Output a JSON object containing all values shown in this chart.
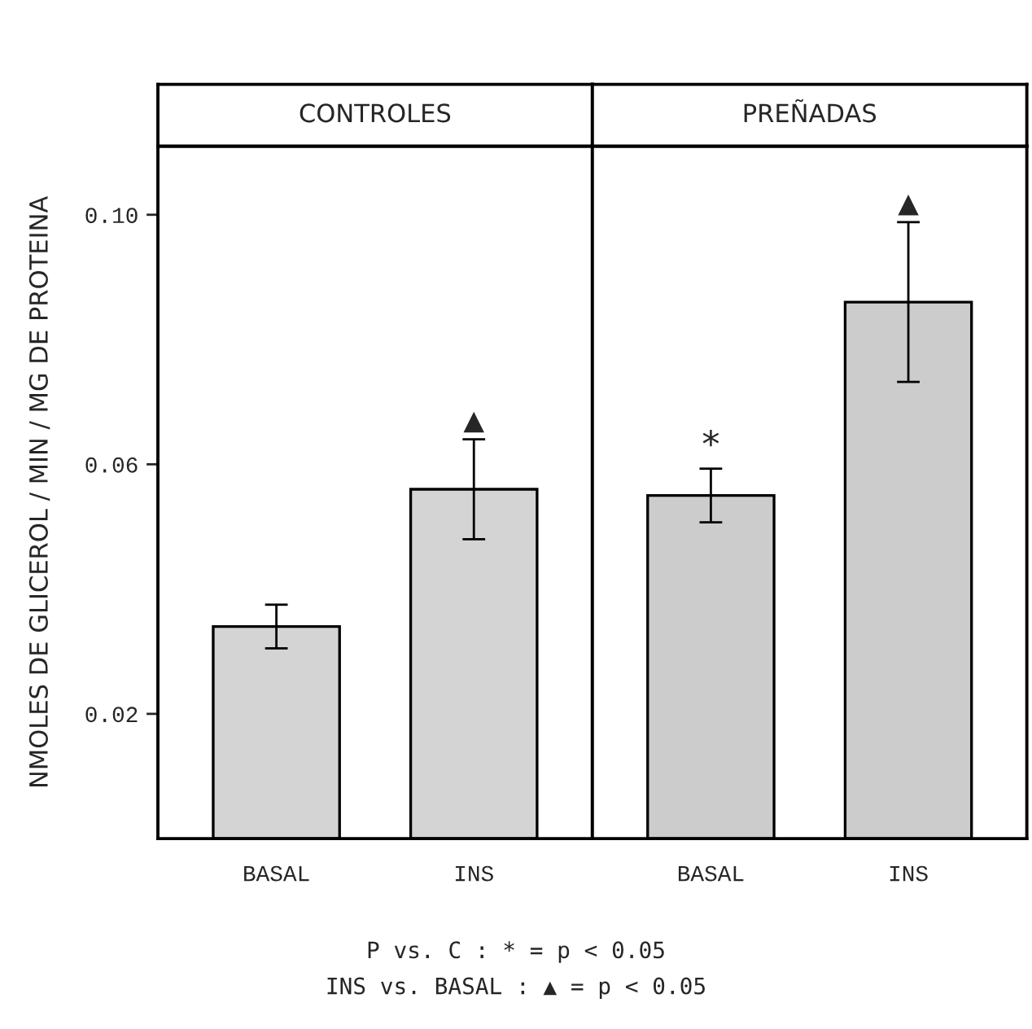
{
  "chart_data": [
    {
      "type": "bar",
      "title": "CONTROLES",
      "ylabel": "NMOLES DE GLICEROL / MIN / MG DE PROTEINA",
      "categories": [
        "BASAL",
        "INS"
      ],
      "values": [
        0.034,
        0.056
      ],
      "errors": [
        0.0035,
        0.008
      ],
      "color": "#d4d4d4",
      "ylim": [
        0,
        0.111
      ],
      "yticks": [
        0.02,
        0.06,
        {
          "value": 0.1,
          "label": "0.10"
        }
      ],
      "grid": false,
      "annotations": [
        {
          "text": "▲",
          "x": "INS",
          "y": 0.064
        },
        "P vs. C : * = p < 0.05",
        "INS vs. BASAL : ▲ = p < 0.05"
      ]
    },
    {
      "type": "bar",
      "title": "PREÑADAS",
      "categories": [
        "BASAL",
        "INS"
      ],
      "values": [
        0.055,
        0.086
      ],
      "errors": [
        0.0043,
        0.0128
      ],
      "color": "#cccccc",
      "ylim": [
        0,
        0.111
      ],
      "tick_labels": "x",
      "grid": false,
      "annotations": [
        {
          "text": "*",
          "x": "BASAL",
          "y": 0.0593
        },
        {
          "text": "▲",
          "x": "INS",
          "y": 0.0988
        }
      ]
    }
  ]
}
